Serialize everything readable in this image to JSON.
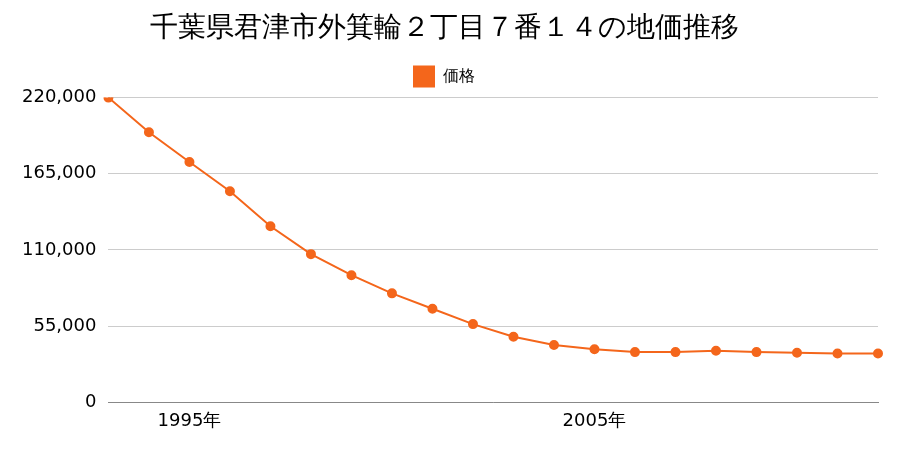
{
  "chart_data": {
    "type": "line",
    "title": "千葉県君津市外箕輪２丁目７番１４の地価推移",
    "categories": [
      null,
      null,
      "1995年",
      null,
      null,
      null,
      null,
      null,
      null,
      null,
      null,
      null,
      "2005年",
      null,
      null,
      null,
      null,
      null,
      null,
      null
    ],
    "series": [
      {
        "name": "価格",
        "color": "#f4661b",
        "marker": "circle",
        "values": [
          220000,
          195000,
          173500,
          152400,
          127100,
          107000,
          91800,
          78700,
          67600,
          56500,
          47400,
          41400,
          38300,
          36300,
          36300,
          37300,
          36300,
          35800,
          35300,
          35300
        ]
      }
    ],
    "ylim": [
      0,
      220000
    ],
    "yticks": [
      0,
      {
        "value": 55000,
        "label": "55,000"
      },
      {
        "value": 110000,
        "label": "110,000"
      },
      {
        "value": 165000,
        "label": "165,000"
      },
      {
        "value": 220000,
        "label": "220,000"
      }
    ],
    "grid": true,
    "legend": "top"
  }
}
